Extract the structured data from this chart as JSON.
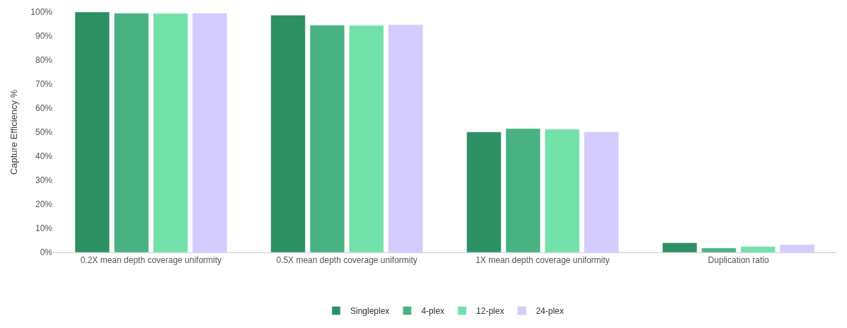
{
  "chart_data": {
    "type": "bar",
    "ylabel": "Capture Efficiency %",
    "categories": [
      "0.2X mean depth coverage uniformity",
      "0.5X mean depth coverage uniformity",
      "1X mean depth coverage uniformity",
      "Duplication ratio"
    ],
    "series": [
      {
        "name": "Singleplex",
        "color": "#2d9065",
        "values": [
          100,
          98.7,
          50.1,
          4.0
        ]
      },
      {
        "name": "4-plex",
        "color": "#48b283",
        "values": [
          99.5,
          94.5,
          51.5,
          1.8
        ]
      },
      {
        "name": "12-plex",
        "color": "#72e1aa",
        "values": [
          99.4,
          94.4,
          51.2,
          2.4
        ]
      },
      {
        "name": "24-plex",
        "color": "#d4ccfe",
        "values": [
          99.5,
          94.7,
          50.1,
          3.2
        ]
      }
    ],
    "ylim": [
      0,
      100
    ],
    "yticks": [
      {
        "value": 0,
        "label": "0%"
      },
      {
        "value": 10,
        "label": "10%"
      },
      {
        "value": 20,
        "label": "20%"
      },
      {
        "value": 30,
        "label": "30%"
      },
      {
        "value": 40,
        "label": "40%"
      },
      {
        "value": 50,
        "label": "50%"
      },
      {
        "value": 60,
        "label": "60%"
      },
      {
        "value": 70,
        "label": "70%"
      },
      {
        "value": 80,
        "label": "80%"
      },
      {
        "value": 90,
        "label": "90%"
      },
      {
        "value": 100,
        "label": "100%"
      }
    ],
    "grid": false,
    "legend": "bottom"
  }
}
